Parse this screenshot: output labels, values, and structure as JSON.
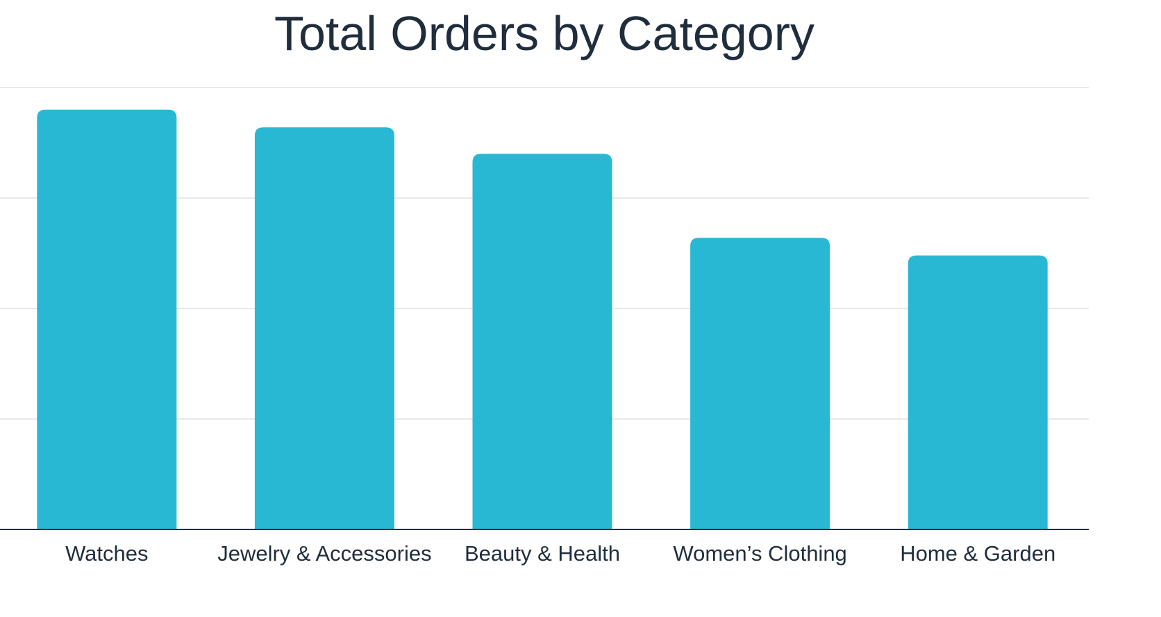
{
  "chart_data": {
    "type": "bar",
    "title": "Total Orders by Category",
    "xlabel": "",
    "ylabel": "",
    "categories": [
      "Watches",
      "Jewelry & Accessories",
      "Beauty & Health",
      "Women’s Clothing",
      "Home & Garden"
    ],
    "values": [
      95,
      91,
      85,
      66,
      62
    ],
    "ylim": [
      0,
      100
    ],
    "grid": true,
    "legend": "none",
    "colors": {
      "bar": "#29b8d4",
      "grid": "#d9d9d9",
      "axis": "#1f2d3d",
      "text": "#1f2d3d"
    }
  }
}
